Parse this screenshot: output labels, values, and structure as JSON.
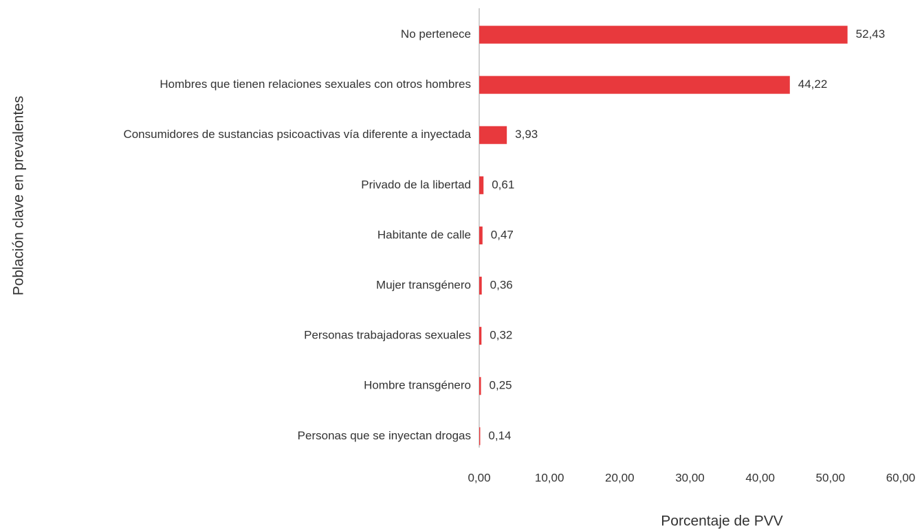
{
  "chart_data": {
    "type": "bar",
    "orientation": "horizontal",
    "xlabel": "Porcentaje de PVV",
    "ylabel": "Población clave en prevalentes",
    "categories": [
      "No pertenece",
      "Hombres que tienen relaciones sexuales con otros hombres",
      "Consumidores de sustancias psicoactivas vía diferente a inyectada",
      "Privado de la libertad",
      "Habitante de calle",
      "Mujer transgénero",
      "Personas trabajadoras sexuales",
      "Hombre transgénero",
      "Personas que se inyectan drogas"
    ],
    "values": [
      52.43,
      44.22,
      3.93,
      0.61,
      0.47,
      0.36,
      0.32,
      0.25,
      0.14
    ],
    "value_labels": [
      "52,43",
      "44,22",
      "3,93",
      "0,61",
      "0,47",
      "0,36",
      "0,32",
      "0,25",
      "0,14"
    ],
    "color": "#e8393d",
    "xlim": [
      0,
      60
    ],
    "xticks": [
      {
        "value": 0,
        "label": "0,00"
      },
      {
        "value": 10,
        "label": "10,00"
      },
      {
        "value": 20,
        "label": "20,00"
      },
      {
        "value": 30,
        "label": "30,00"
      },
      {
        "value": 40,
        "label": "40,00"
      },
      {
        "value": 50,
        "label": "50,00"
      },
      {
        "value": 60,
        "label": "60,00"
      }
    ],
    "grid": false
  }
}
